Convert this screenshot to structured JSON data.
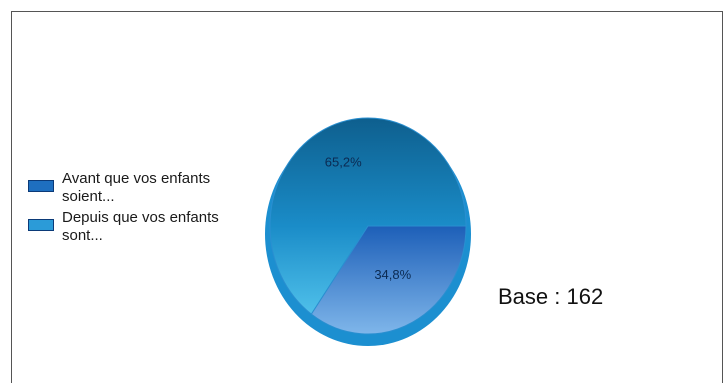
{
  "chart_data": {
    "type": "pie",
    "slices": [
      {
        "label": "Avant que vos enfants soient...",
        "value": 65.2,
        "value_label": "65,2%",
        "color": "#1e6fc0"
      },
      {
        "label": "Depuis que vos enfants sont...",
        "value": 34.8,
        "value_label": "34,8%",
        "color": "#2b9bd8"
      }
    ],
    "legend_position": "left",
    "base_note": "Base : 162"
  }
}
